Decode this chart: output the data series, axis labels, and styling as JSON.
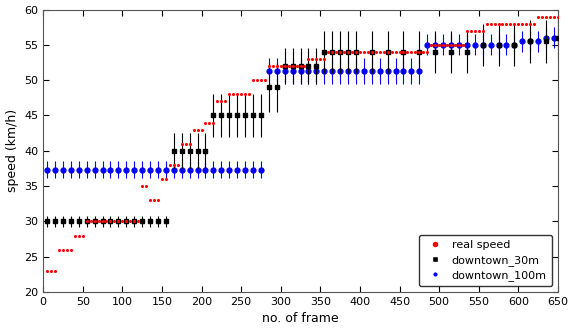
{
  "title": "",
  "xlabel": "no. of frame",
  "ylabel": "speed (km/h)",
  "xlim": [
    0,
    650
  ],
  "ylim": [
    20,
    60
  ],
  "yticks": [
    20,
    25,
    30,
    35,
    40,
    45,
    50,
    55,
    60
  ],
  "xticks": [
    0,
    50,
    100,
    150,
    200,
    250,
    300,
    350,
    400,
    450,
    500,
    550,
    600,
    650
  ],
  "real_speed_points": [
    [
      5,
      23
    ],
    [
      10,
      23
    ],
    [
      15,
      23
    ],
    [
      20,
      26
    ],
    [
      25,
      26
    ],
    [
      30,
      26
    ],
    [
      35,
      26
    ],
    [
      40,
      28
    ],
    [
      45,
      28
    ],
    [
      50,
      28
    ],
    [
      55,
      30
    ],
    [
      60,
      30
    ],
    [
      65,
      30
    ],
    [
      70,
      30
    ],
    [
      75,
      30
    ],
    [
      80,
      30
    ],
    [
      85,
      30
    ],
    [
      90,
      30
    ],
    [
      95,
      30
    ],
    [
      100,
      30
    ],
    [
      105,
      30
    ],
    [
      110,
      30
    ],
    [
      115,
      30
    ],
    [
      120,
      30
    ],
    [
      125,
      35
    ],
    [
      130,
      35
    ],
    [
      135,
      33
    ],
    [
      140,
      33
    ],
    [
      145,
      33
    ],
    [
      150,
      36
    ],
    [
      155,
      36
    ],
    [
      160,
      38
    ],
    [
      165,
      38
    ],
    [
      170,
      38
    ],
    [
      175,
      41
    ],
    [
      180,
      41
    ],
    [
      185,
      41
    ],
    [
      190,
      43
    ],
    [
      195,
      43
    ],
    [
      200,
      43
    ],
    [
      205,
      44
    ],
    [
      210,
      44
    ],
    [
      215,
      44
    ],
    [
      220,
      47
    ],
    [
      225,
      47
    ],
    [
      230,
      47
    ],
    [
      235,
      48
    ],
    [
      240,
      48
    ],
    [
      245,
      48
    ],
    [
      250,
      48
    ],
    [
      255,
      48
    ],
    [
      260,
      48
    ],
    [
      265,
      50
    ],
    [
      270,
      50
    ],
    [
      275,
      50
    ],
    [
      280,
      50
    ],
    [
      285,
      52
    ],
    [
      290,
      52
    ],
    [
      295,
      52
    ],
    [
      300,
      52
    ],
    [
      305,
      52
    ],
    [
      310,
      52
    ],
    [
      315,
      52
    ],
    [
      320,
      52
    ],
    [
      325,
      52
    ],
    [
      330,
      52
    ],
    [
      335,
      53
    ],
    [
      340,
      53
    ],
    [
      345,
      53
    ],
    [
      350,
      53
    ],
    [
      355,
      53
    ],
    [
      360,
      54
    ],
    [
      365,
      54
    ],
    [
      370,
      54
    ],
    [
      375,
      54
    ],
    [
      380,
      54
    ],
    [
      385,
      54
    ],
    [
      390,
      54
    ],
    [
      395,
      54
    ],
    [
      400,
      54
    ],
    [
      405,
      54
    ],
    [
      410,
      54
    ],
    [
      415,
      54
    ],
    [
      420,
      54
    ],
    [
      425,
      54
    ],
    [
      430,
      54
    ],
    [
      435,
      54
    ],
    [
      440,
      54
    ],
    [
      445,
      54
    ],
    [
      450,
      54
    ],
    [
      455,
      54
    ],
    [
      460,
      54
    ],
    [
      465,
      54
    ],
    [
      470,
      54
    ],
    [
      475,
      54
    ],
    [
      480,
      54
    ],
    [
      485,
      54
    ],
    [
      490,
      55
    ],
    [
      495,
      55
    ],
    [
      500,
      55
    ],
    [
      505,
      55
    ],
    [
      510,
      55
    ],
    [
      515,
      55
    ],
    [
      520,
      55
    ],
    [
      525,
      55
    ],
    [
      530,
      55
    ],
    [
      535,
      57
    ],
    [
      540,
      57
    ],
    [
      545,
      57
    ],
    [
      550,
      57
    ],
    [
      555,
      57
    ],
    [
      560,
      58
    ],
    [
      565,
      58
    ],
    [
      570,
      58
    ],
    [
      575,
      58
    ],
    [
      580,
      58
    ],
    [
      585,
      58
    ],
    [
      590,
      58
    ],
    [
      595,
      58
    ],
    [
      600,
      58
    ],
    [
      605,
      58
    ],
    [
      610,
      58
    ],
    [
      615,
      58
    ],
    [
      620,
      58
    ],
    [
      625,
      59
    ],
    [
      630,
      59
    ],
    [
      635,
      59
    ],
    [
      640,
      59
    ],
    [
      645,
      59
    ],
    [
      650,
      59
    ]
  ],
  "downtown_30m": {
    "color": "#000000",
    "points": [
      [
        5,
        30,
        0.8
      ],
      [
        15,
        30,
        0.8
      ],
      [
        25,
        30,
        0.8
      ],
      [
        35,
        30,
        0.8
      ],
      [
        45,
        30,
        0.8
      ],
      [
        55,
        30,
        0.8
      ],
      [
        65,
        30,
        0.8
      ],
      [
        75,
        30,
        0.8
      ],
      [
        85,
        30,
        0.8
      ],
      [
        95,
        30,
        0.8
      ],
      [
        105,
        30,
        0.8
      ],
      [
        115,
        30,
        0.8
      ],
      [
        125,
        30,
        0.8
      ],
      [
        135,
        30,
        0.8
      ],
      [
        145,
        30,
        0.8
      ],
      [
        155,
        30,
        0.8
      ],
      [
        165,
        40,
        2.5
      ],
      [
        175,
        40,
        2.5
      ],
      [
        185,
        40,
        2.5
      ],
      [
        195,
        40,
        2.5
      ],
      [
        205,
        40,
        2.5
      ],
      [
        215,
        45,
        3.0
      ],
      [
        225,
        45,
        3.0
      ],
      [
        235,
        45,
        3.0
      ],
      [
        245,
        45,
        3.0
      ],
      [
        255,
        45,
        3.0
      ],
      [
        265,
        45,
        3.0
      ],
      [
        275,
        45,
        3.0
      ],
      [
        285,
        49,
        3.5
      ],
      [
        295,
        49,
        3.5
      ],
      [
        305,
        52,
        2.5
      ],
      [
        315,
        52,
        2.5
      ],
      [
        325,
        52,
        2.5
      ],
      [
        335,
        52,
        2.5
      ],
      [
        345,
        52,
        2.5
      ],
      [
        355,
        54,
        3.0
      ],
      [
        365,
        54,
        3.0
      ],
      [
        375,
        54,
        3.0
      ],
      [
        385,
        54,
        3.0
      ],
      [
        395,
        54,
        3.0
      ],
      [
        415,
        54,
        3.0
      ],
      [
        435,
        54,
        3.0
      ],
      [
        455,
        54,
        3.0
      ],
      [
        475,
        54,
        3.0
      ],
      [
        495,
        54,
        3.0
      ],
      [
        515,
        54,
        3.0
      ],
      [
        535,
        54,
        3.0
      ],
      [
        555,
        55,
        3.0
      ],
      [
        575,
        55,
        3.0
      ],
      [
        595,
        55,
        3.0
      ],
      [
        615,
        55.5,
        3.0
      ],
      [
        635,
        55.5,
        3.0
      ],
      [
        650,
        56,
        3.0
      ]
    ]
  },
  "downtown_100m": {
    "color": "#0000ff",
    "points": [
      [
        5,
        37.3,
        1.2
      ],
      [
        15,
        37.3,
        1.2
      ],
      [
        25,
        37.3,
        1.2
      ],
      [
        35,
        37.3,
        1.2
      ],
      [
        45,
        37.3,
        1.2
      ],
      [
        55,
        37.3,
        1.2
      ],
      [
        65,
        37.3,
        1.2
      ],
      [
        75,
        37.3,
        1.2
      ],
      [
        85,
        37.3,
        1.2
      ],
      [
        95,
        37.3,
        1.2
      ],
      [
        105,
        37.3,
        1.2
      ],
      [
        115,
        37.3,
        1.2
      ],
      [
        125,
        37.3,
        1.2
      ],
      [
        135,
        37.3,
        1.2
      ],
      [
        145,
        37.3,
        1.2
      ],
      [
        155,
        37.3,
        1.2
      ],
      [
        165,
        37.3,
        1.2
      ],
      [
        175,
        37.3,
        1.2
      ],
      [
        185,
        37.3,
        1.2
      ],
      [
        195,
        37.3,
        1.2
      ],
      [
        205,
        37.3,
        1.2
      ],
      [
        215,
        37.3,
        1.2
      ],
      [
        225,
        37.3,
        1.2
      ],
      [
        235,
        37.3,
        1.2
      ],
      [
        245,
        37.3,
        1.2
      ],
      [
        255,
        37.3,
        1.2
      ],
      [
        265,
        37.3,
        1.2
      ],
      [
        275,
        37.3,
        1.2
      ],
      [
        285,
        51.3,
        1.8
      ],
      [
        295,
        51.3,
        1.8
      ],
      [
        305,
        51.3,
        1.8
      ],
      [
        315,
        51.3,
        1.8
      ],
      [
        325,
        51.3,
        1.8
      ],
      [
        335,
        51.3,
        1.8
      ],
      [
        345,
        51.3,
        1.8
      ],
      [
        355,
        51.3,
        1.8
      ],
      [
        365,
        51.3,
        1.8
      ],
      [
        375,
        51.3,
        1.8
      ],
      [
        385,
        51.3,
        1.8
      ],
      [
        395,
        51.3,
        1.8
      ],
      [
        405,
        51.3,
        1.8
      ],
      [
        415,
        51.3,
        1.8
      ],
      [
        425,
        51.3,
        1.8
      ],
      [
        435,
        51.3,
        1.8
      ],
      [
        445,
        51.3,
        1.8
      ],
      [
        455,
        51.3,
        1.8
      ],
      [
        465,
        51.3,
        1.8
      ],
      [
        475,
        51.3,
        1.8
      ],
      [
        485,
        55.0,
        1.5
      ],
      [
        495,
        55.0,
        1.5
      ],
      [
        505,
        55.0,
        1.5
      ],
      [
        515,
        55.0,
        1.5
      ],
      [
        525,
        55.0,
        1.5
      ],
      [
        535,
        55.0,
        1.5
      ],
      [
        545,
        55.0,
        1.5
      ],
      [
        555,
        55.0,
        1.5
      ],
      [
        565,
        55.0,
        1.5
      ],
      [
        575,
        55.0,
        1.5
      ],
      [
        585,
        55.0,
        1.5
      ],
      [
        595,
        55.0,
        1.5
      ],
      [
        605,
        55.5,
        1.5
      ],
      [
        615,
        55.5,
        1.5
      ],
      [
        625,
        55.5,
        1.5
      ],
      [
        635,
        56.0,
        1.5
      ],
      [
        645,
        56.0,
        1.5
      ]
    ]
  },
  "legend_loc": "lower right",
  "background_color": "#ffffff"
}
